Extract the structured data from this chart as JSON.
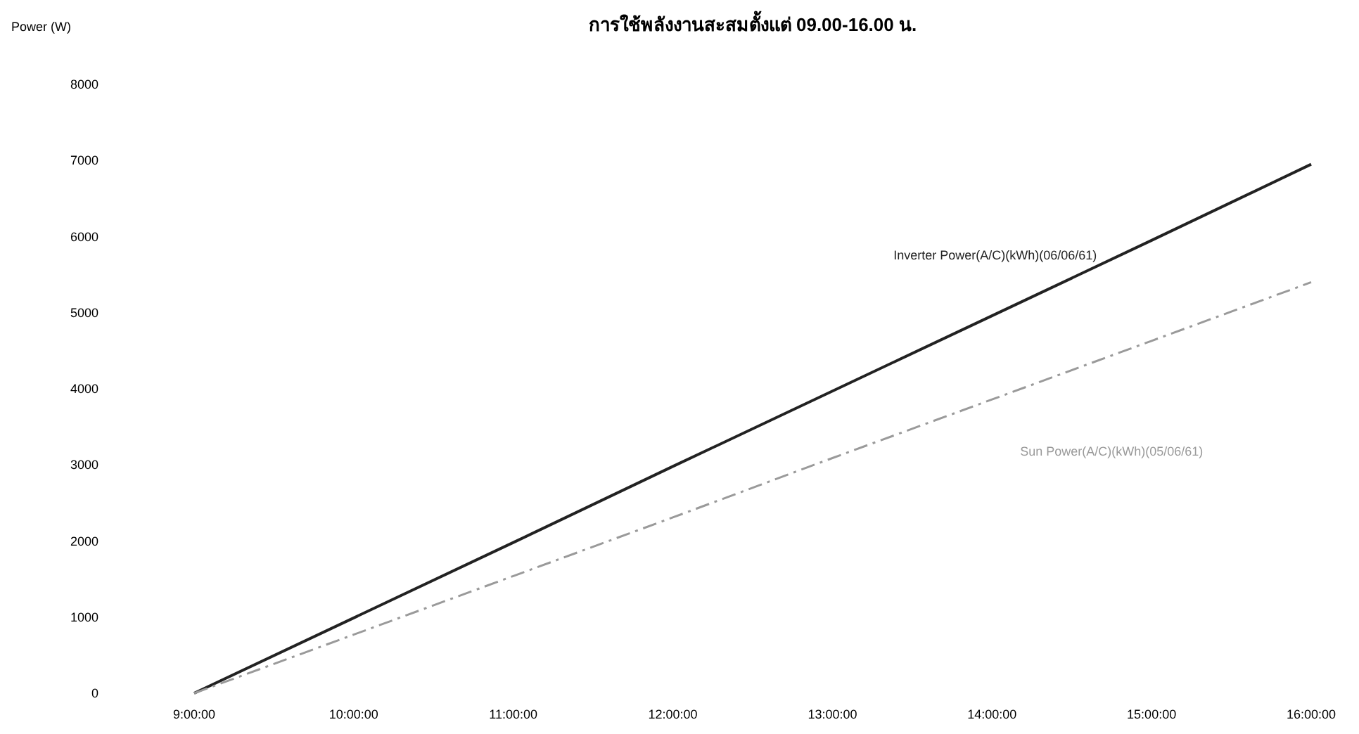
{
  "chart_data": {
    "type": "line",
    "title": "การใช้พลังงานสะสมตั้งแต่ 09.00-16.00 น.",
    "ylabel": "Power (W)",
    "x": [
      9,
      10,
      11,
      12,
      13,
      14,
      15,
      16
    ],
    "series": [
      {
        "name": "Inverter Power(A/C)(kWh)(06/06/61)",
        "color": "#222222",
        "line_style": "solid",
        "values": [
          0,
          990,
          1980,
          2980,
          3970,
          4960,
          5950,
          6950
        ]
      },
      {
        "name": "Sun Power(A/C)(kWh)(05/06/61)",
        "color": "#9a9a9a",
        "line_style": "dashed",
        "values": [
          0,
          770,
          1540,
          2310,
          3090,
          3860,
          4630,
          5400
        ]
      }
    ],
    "xlim": [
      9,
      16
    ],
    "ylim": [
      0,
      8000
    ],
    "xticks": [
      {
        "value": 9,
        "label": "9:00:00"
      },
      {
        "value": 10,
        "label": "10:00:00"
      },
      {
        "value": 11,
        "label": "11:00:00"
      },
      {
        "value": 12,
        "label": "12:00:00"
      },
      {
        "value": 13,
        "label": "13:00:00"
      },
      {
        "value": 14,
        "label": "14:00:00"
      },
      {
        "value": 15,
        "label": "15:00:00"
      },
      {
        "value": 16,
        "label": "16:00:00"
      }
    ],
    "yticks": [
      0,
      1000,
      2000,
      3000,
      4000,
      5000,
      6000,
      7000,
      8000
    ],
    "grid": false
  }
}
